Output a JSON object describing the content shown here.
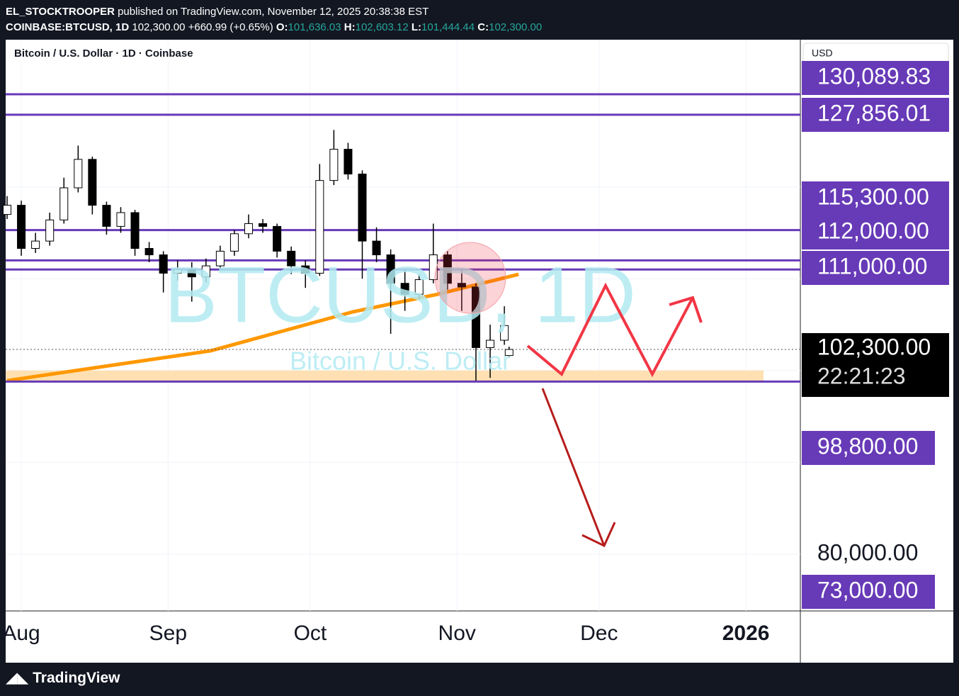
{
  "header": {
    "publisher": "EL_STOCKTROOPER",
    "published": "published on TradingView.com, November 12, 2025 20:38:38 EST",
    "symbol": "COINBASE:BTCUSD, 1D",
    "last": "102,300.00",
    "change": "+660.99 (+0.65%)",
    "open_key": "O:",
    "open": "101,636.03",
    "high_key": "H:",
    "high": "102,603.12",
    "low_key": "L:",
    "low": "101,444.44",
    "close_key": "C:",
    "close": "102,300.00"
  },
  "legend": "Bitcoin / U.S. Dollar · 1D · Coinbase",
  "currency": "USD",
  "watermark": {
    "symbol": "BTCUSD, 1D",
    "name": "Bitcoin / U.S. Dollar"
  },
  "footer": "TradingView",
  "chart_data": {
    "type": "candlestick",
    "x": [
      -3,
      0,
      3,
      6,
      9,
      12,
      15,
      18,
      21,
      24,
      27,
      30,
      33,
      36,
      39,
      42,
      45,
      48,
      51,
      54,
      57,
      60,
      63,
      66,
      69,
      72,
      75,
      78,
      81,
      84,
      87,
      90,
      93,
      96,
      99,
      102,
      103
    ],
    "open": [
      117000,
      118000,
      113300,
      114100,
      116400,
      119900,
      123000,
      118000,
      115700,
      117200,
      113300,
      112600,
      110600,
      111000,
      110200,
      111400,
      113000,
      114900,
      116000,
      115700,
      113000,
      111400,
      110600,
      120700,
      124100,
      121400,
      114100,
      112600,
      109500,
      108300,
      109900,
      112600,
      109500,
      109100,
      102500,
      103300,
      101636.03
    ],
    "high": [
      119000,
      118500,
      115000,
      117200,
      121000,
      124500,
      123300,
      118400,
      117800,
      117500,
      114000,
      113000,
      112000,
      111800,
      112200,
      113600,
      115300,
      117000,
      116500,
      116000,
      113500,
      112000,
      122500,
      126200,
      124800,
      121800,
      115600,
      113200,
      111000,
      110500,
      116000,
      113000,
      111000,
      109500,
      105000,
      107000,
      102603.12
    ],
    "low": [
      116500,
      112500,
      112800,
      113600,
      116000,
      119400,
      117000,
      114800,
      115000,
      112500,
      111800,
      108500,
      109800,
      107500,
      109600,
      110900,
      112500,
      114400,
      115000,
      112300,
      110500,
      109000,
      110300,
      120200,
      120800,
      110000,
      111800,
      104000,
      106500,
      107800,
      109500,
      108800,
      106500,
      98900,
      99200,
      102800,
      101444.44
    ],
    "close": [
      118000,
      113300,
      114100,
      116400,
      119900,
      123000,
      118000,
      115700,
      117200,
      113300,
      112600,
      110600,
      111000,
      110200,
      111400,
      113000,
      114900,
      116000,
      115700,
      113000,
      111400,
      110600,
      120700,
      124100,
      121400,
      114100,
      112600,
      109500,
      108300,
      109900,
      112600,
      109500,
      109100,
      102500,
      103300,
      104900,
      102300
    ],
    "up_color": "#ffffff",
    "down_color": "#000000",
    "ma": {
      "x": [
        -3,
        40,
        70,
        88,
        105
      ],
      "values": [
        98900,
        102150,
        106390,
        108320,
        110480
      ],
      "color": "#ff9800"
    },
    "levels": [
      {
        "value": 130089.83,
        "label": "130,089.83"
      },
      {
        "value": 127856.01,
        "label": "127,856.01"
      },
      {
        "value": 115300,
        "label": "115,300.00"
      },
      {
        "value": 112000,
        "label": "112,000.00"
      },
      {
        "value": 111000,
        "label": "111,000.00"
      },
      {
        "value": 98800,
        "label": "98,800.00"
      },
      {
        "value": 73000,
        "label": "73,000.00"
      }
    ],
    "level_color": "#673ab7",
    "current": {
      "value": 102300,
      "label": "102,300.00",
      "countdown": "22:21:23"
    },
    "zone": [
      98800,
      100000
    ],
    "xlim": [
      -3.3,
      164.5
    ],
    "ylim": [
      73816,
      135956
    ],
    "xticks": [
      {
        "value": 0,
        "label": "Aug"
      },
      {
        "value": 31,
        "label": "Sep"
      },
      {
        "value": 61,
        "label": "Oct"
      },
      {
        "value": 92,
        "label": "Nov"
      },
      {
        "value": 122,
        "label": "Dec"
      },
      {
        "value": 153,
        "label": "2026"
      }
    ],
    "yticks": [
      {
        "value": 80000,
        "label": "80,000.00"
      },
      90000,
      100000,
      110000,
      120000,
      130000
    ],
    "grid": true
  }
}
